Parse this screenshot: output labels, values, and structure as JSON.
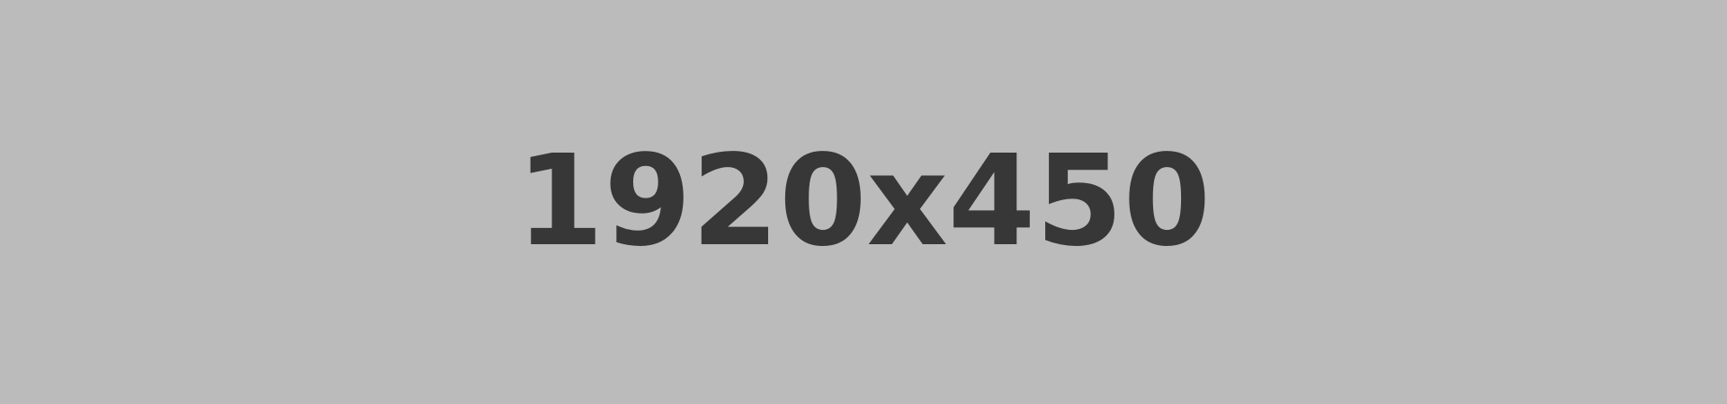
{
  "placeholder": {
    "text": "1920x450",
    "background_color": "#bbbbbb",
    "text_color": "#373737"
  }
}
